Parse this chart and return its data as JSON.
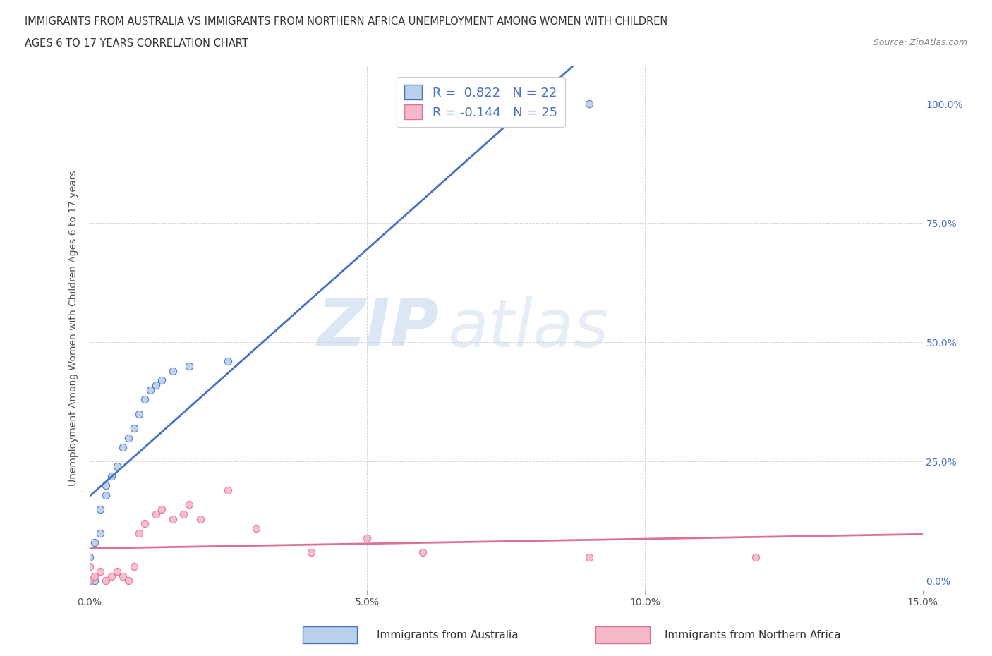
{
  "title_line1": "IMMIGRANTS FROM AUSTRALIA VS IMMIGRANTS FROM NORTHERN AFRICA UNEMPLOYMENT AMONG WOMEN WITH CHILDREN",
  "title_line2": "AGES 6 TO 17 YEARS CORRELATION CHART",
  "source": "Source: ZipAtlas.com",
  "ylabel": "Unemployment Among Women with Children Ages 6 to 17 years",
  "xlim": [
    0.0,
    0.15
  ],
  "ylim": [
    -0.02,
    1.08
  ],
  "xticks": [
    0.0,
    0.05,
    0.1,
    0.15
  ],
  "xtick_labels": [
    "0.0%",
    "5.0%",
    "10.0%",
    "15.0%"
  ],
  "yticks": [
    0.0,
    0.25,
    0.5,
    0.75,
    1.0
  ],
  "ytick_labels": [
    "0.0%",
    "25.0%",
    "50.0%",
    "75.0%",
    "100.0%"
  ],
  "australia_color": "#b8d0ea",
  "australia_line_color": "#4472c4",
  "northern_africa_color": "#f5b8c8",
  "northern_africa_line_color": "#e07090",
  "australia_R": 0.822,
  "australia_N": 22,
  "northern_africa_R": -0.144,
  "northern_africa_N": 25,
  "watermark_zip": "ZIP",
  "watermark_atlas": "atlas",
  "legend_label_australia": "Immigrants from Australia",
  "legend_label_africa": "Immigrants from Northern Africa",
  "australia_x": [
    0.0,
    0.0,
    0.001,
    0.001,
    0.002,
    0.002,
    0.003,
    0.003,
    0.004,
    0.005,
    0.006,
    0.007,
    0.008,
    0.009,
    0.01,
    0.011,
    0.012,
    0.013,
    0.015,
    0.018,
    0.025,
    0.09
  ],
  "australia_y": [
    0.0,
    0.05,
    0.0,
    0.08,
    0.1,
    0.15,
    0.18,
    0.2,
    0.22,
    0.24,
    0.28,
    0.3,
    0.32,
    0.35,
    0.38,
    0.4,
    0.41,
    0.42,
    0.44,
    0.45,
    0.46,
    1.0
  ],
  "n_africa_x": [
    0.0,
    0.0,
    0.001,
    0.002,
    0.003,
    0.004,
    0.005,
    0.006,
    0.007,
    0.008,
    0.009,
    0.01,
    0.012,
    0.013,
    0.015,
    0.017,
    0.018,
    0.02,
    0.025,
    0.03,
    0.04,
    0.05,
    0.06,
    0.09,
    0.12
  ],
  "n_africa_y": [
    0.0,
    0.03,
    0.01,
    0.02,
    0.0,
    0.01,
    0.02,
    0.01,
    0.0,
    0.03,
    0.1,
    0.12,
    0.14,
    0.15,
    0.13,
    0.14,
    0.16,
    0.13,
    0.19,
    0.11,
    0.06,
    0.09,
    0.06,
    0.05,
    0.05
  ]
}
